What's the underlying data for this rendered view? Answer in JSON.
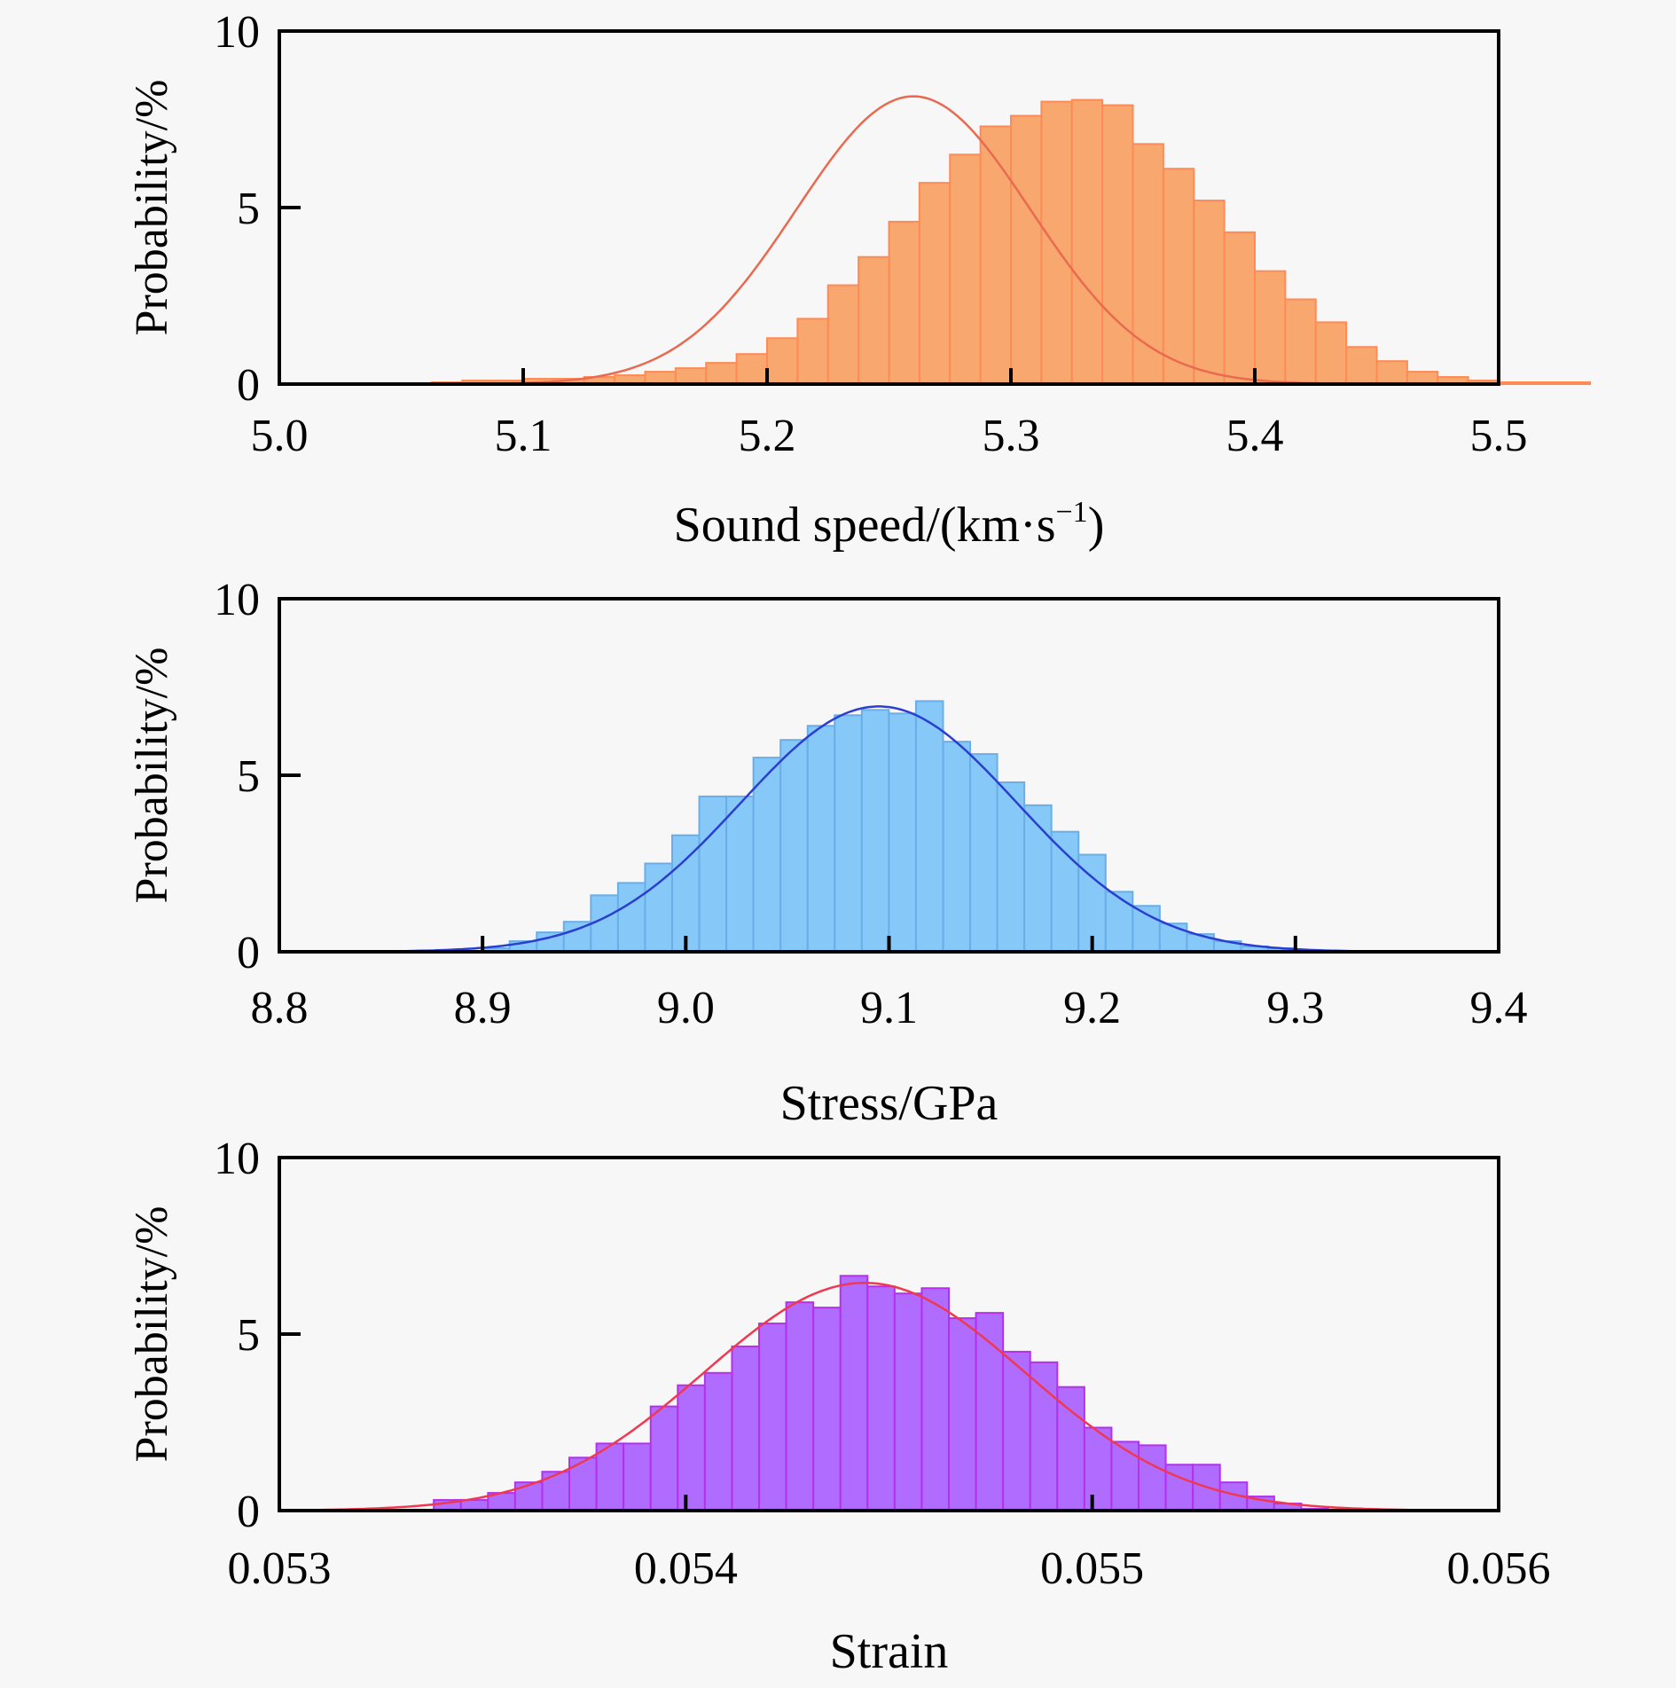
{
  "chart_data": [
    {
      "type": "bar",
      "subtype": "histogram-with-normal-fit",
      "title": "",
      "xlabel": "Sound speed/(km·s⁻¹)",
      "xlabel_base": "Sound speed/(km·s",
      "xlabel_sup": "−1",
      "xlabel_tail": ")",
      "ylabel": "Probability/%",
      "xlim": [
        5.0,
        5.5
      ],
      "ylim": [
        0,
        10
      ],
      "xticks": [
        5.0,
        5.1,
        5.2,
        5.3,
        5.4,
        5.5
      ],
      "xtick_labels": [
        "5.0",
        "5.1",
        "5.2",
        "5.3",
        "5.4",
        "5.5"
      ],
      "yticks": [
        0,
        5,
        10
      ],
      "ytick_labels": [
        "0",
        "5",
        "10"
      ],
      "grid": false,
      "bar_color": "#F8A86E",
      "bar_edge_color": "#FF8A55",
      "fit_color": "#E86A50",
      "bin_start": 5.0,
      "bin_width": 0.0125,
      "values": [
        0.0,
        0.0,
        0.0,
        0.0,
        0.0,
        0.05,
        0.1,
        0.1,
        0.15,
        0.15,
        0.2,
        0.25,
        0.35,
        0.45,
        0.6,
        0.85,
        1.3,
        1.85,
        2.8,
        3.6,
        4.6,
        5.7,
        6.5,
        7.3,
        7.6,
        8.0,
        8.05,
        7.9,
        6.8,
        6.1,
        5.2,
        4.3,
        3.2,
        2.4,
        1.75,
        1.05,
        0.65,
        0.35,
        0.2,
        0.1,
        0.05,
        0.05,
        0.05,
        0.0
      ],
      "fit": {
        "mean": 5.26,
        "sd": 0.048,
        "peak": 8.15
      }
    },
    {
      "type": "bar",
      "subtype": "histogram-with-normal-fit",
      "title": "",
      "xlabel": "Stress/GPa",
      "ylabel": "Probability/%",
      "xlim": [
        8.8,
        9.4
      ],
      "ylim": [
        0,
        10
      ],
      "xticks": [
        8.8,
        8.9,
        9.0,
        9.1,
        9.2,
        9.3,
        9.4
      ],
      "xtick_labels": [
        "8.8",
        "8.9",
        "9.0",
        "9.1",
        "9.2",
        "9.3",
        "9.4"
      ],
      "yticks": [
        0,
        5,
        10
      ],
      "ytick_labels": [
        "0",
        "5",
        "10"
      ],
      "grid": false,
      "bar_color": "#86C8F8",
      "bar_edge_color": "#6AAEE8",
      "fit_color": "#2A3FD0",
      "bin_start": 8.9,
      "bin_width": 0.01333,
      "values": [
        0.1,
        0.3,
        0.55,
        0.85,
        1.6,
        1.95,
        2.5,
        3.3,
        4.4,
        4.4,
        5.5,
        6.0,
        6.4,
        6.7,
        6.85,
        6.75,
        7.1,
        5.95,
        5.6,
        4.8,
        4.15,
        3.4,
        2.75,
        1.7,
        1.3,
        0.8,
        0.5,
        0.3,
        0.15,
        0.1
      ],
      "fit": {
        "mean": 9.095,
        "sd": 0.068,
        "peak": 6.95
      }
    },
    {
      "type": "bar",
      "subtype": "histogram-with-normal-fit",
      "title": "",
      "xlabel": "Strain",
      "ylabel": "Probability/%",
      "xlim": [
        0.053,
        0.056
      ],
      "ylim": [
        0,
        10
      ],
      "xticks": [
        0.053,
        0.054,
        0.055,
        0.056
      ],
      "xtick_labels": [
        "0.053",
        "0.054",
        "0.055",
        "0.056"
      ],
      "yticks": [
        0,
        5,
        10
      ],
      "ytick_labels": [
        "0",
        "5",
        "10"
      ],
      "grid": false,
      "bar_color": "#B06CFF",
      "bar_edge_color": "#B430F0",
      "fit_color": "#F03850",
      "bin_start": 0.05338,
      "bin_width": 6.67e-05,
      "values": [
        0.3,
        0.3,
        0.5,
        0.8,
        1.1,
        1.5,
        1.9,
        1.9,
        2.95,
        3.55,
        3.9,
        4.65,
        5.3,
        5.9,
        5.75,
        6.65,
        6.35,
        6.15,
        6.3,
        5.45,
        5.6,
        4.5,
        4.2,
        3.5,
        2.35,
        1.95,
        1.85,
        1.3,
        1.3,
        0.8,
        0.4,
        0.2,
        0.05
      ],
      "fit": {
        "mean": 0.05444,
        "sd": 0.000395,
        "peak": 6.45
      }
    }
  ]
}
